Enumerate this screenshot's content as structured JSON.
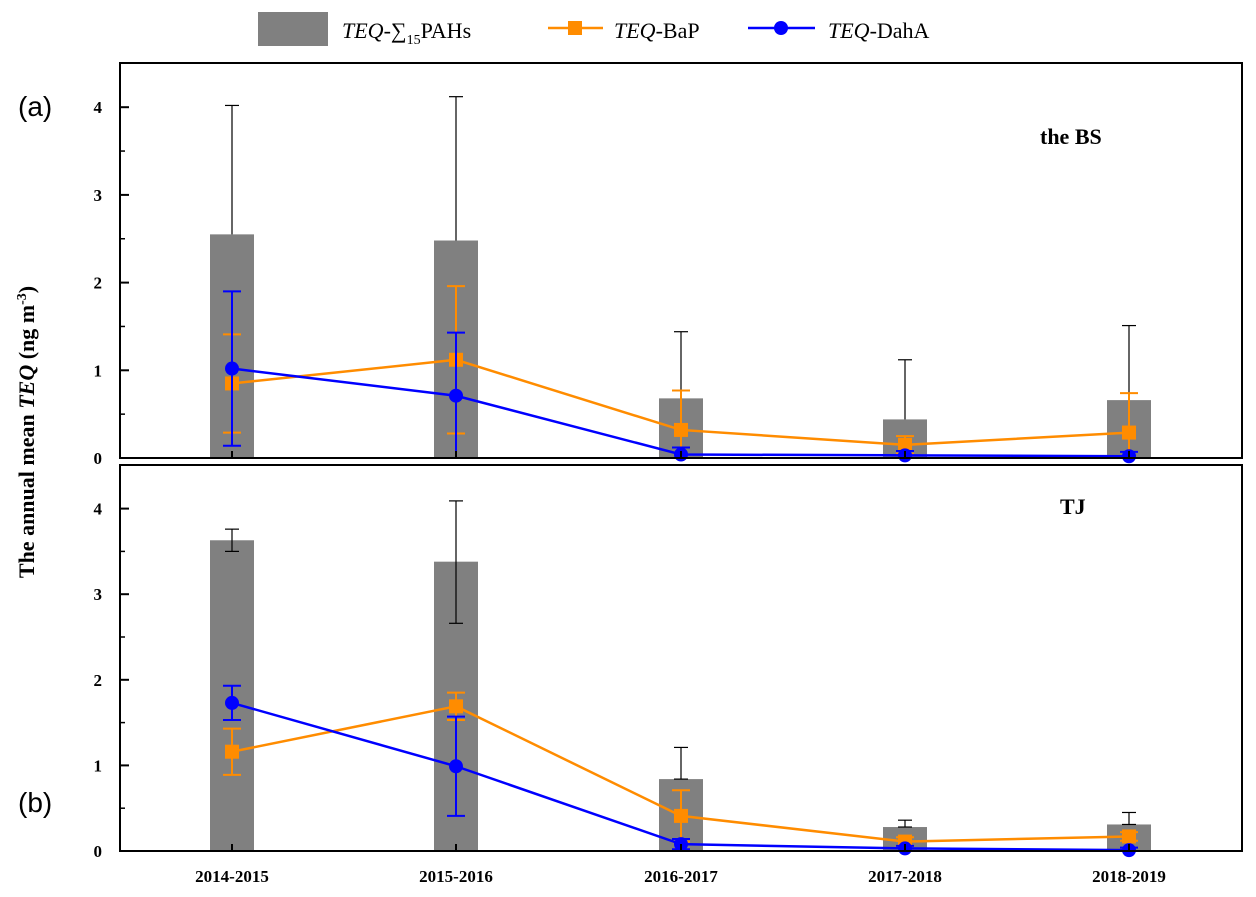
{
  "chart_data": {
    "type": "bar",
    "categories": [
      "2014-2015",
      "2015-2016",
      "2016-2017",
      "2017-2018",
      "2018-2019"
    ],
    "ylabel_main": "The annual mean ",
    "ylabel_italic": "TEQ",
    "ylabel_unit": " (ng m",
    "ylabel_sup": "-3",
    "ylabel_close": ")",
    "legend": {
      "bars_italic": "TEQ",
      "bars_prefix": "-∑",
      "bars_sub": "15",
      "bars_suffix": "PAHs",
      "bap_italic": "TEQ",
      "bap_suffix": "-BaP",
      "daha_italic": "TEQ",
      "daha_suffix": "-DahA"
    },
    "colors": {
      "bars": "#808080",
      "bap": "#ff8c00",
      "daha": "#0000ff"
    },
    "panels": [
      {
        "letter": "(a)",
        "region": "the BS",
        "ylim": [
          0,
          4.5
        ],
        "yticks": [
          "0",
          "1",
          "2",
          "3",
          "4"
        ],
        "bars": [
          2.55,
          2.48,
          0.68,
          0.44,
          0.66
        ],
        "bars_err_hi": [
          4.02,
          4.12,
          1.44,
          1.12,
          1.51
        ],
        "bap": [
          0.85,
          1.12,
          0.32,
          0.15,
          0.29
        ],
        "bap_err": [
          0.56,
          0.84,
          0.45,
          0.1,
          0.45
        ],
        "daha": [
          1.02,
          0.71,
          0.04,
          0.03,
          0.02
        ],
        "daha_err": [
          0.88,
          0.72,
          0.08,
          0.05,
          0.05
        ]
      },
      {
        "letter": "(b)",
        "region": "TJ",
        "ylim": [
          0,
          4.5
        ],
        "yticks": [
          "0",
          "1",
          "2",
          "3",
          "4"
        ],
        "bars": [
          3.63,
          3.38,
          0.84,
          0.28,
          0.31
        ],
        "bars_err_hi": [
          3.76,
          4.09,
          1.21,
          0.36,
          0.45
        ],
        "bars_err_lo": [
          3.5,
          2.66,
          0.84,
          0.28,
          0.31
        ],
        "bap": [
          1.16,
          1.69,
          0.41,
          0.11,
          0.17
        ],
        "bap_err": [
          0.27,
          0.16,
          0.3,
          0.05,
          0.05
        ],
        "daha": [
          1.73,
          0.99,
          0.08,
          0.03,
          0.01
        ],
        "daha_err": [
          0.2,
          0.58,
          0.06,
          0.03,
          0.03
        ]
      }
    ]
  }
}
